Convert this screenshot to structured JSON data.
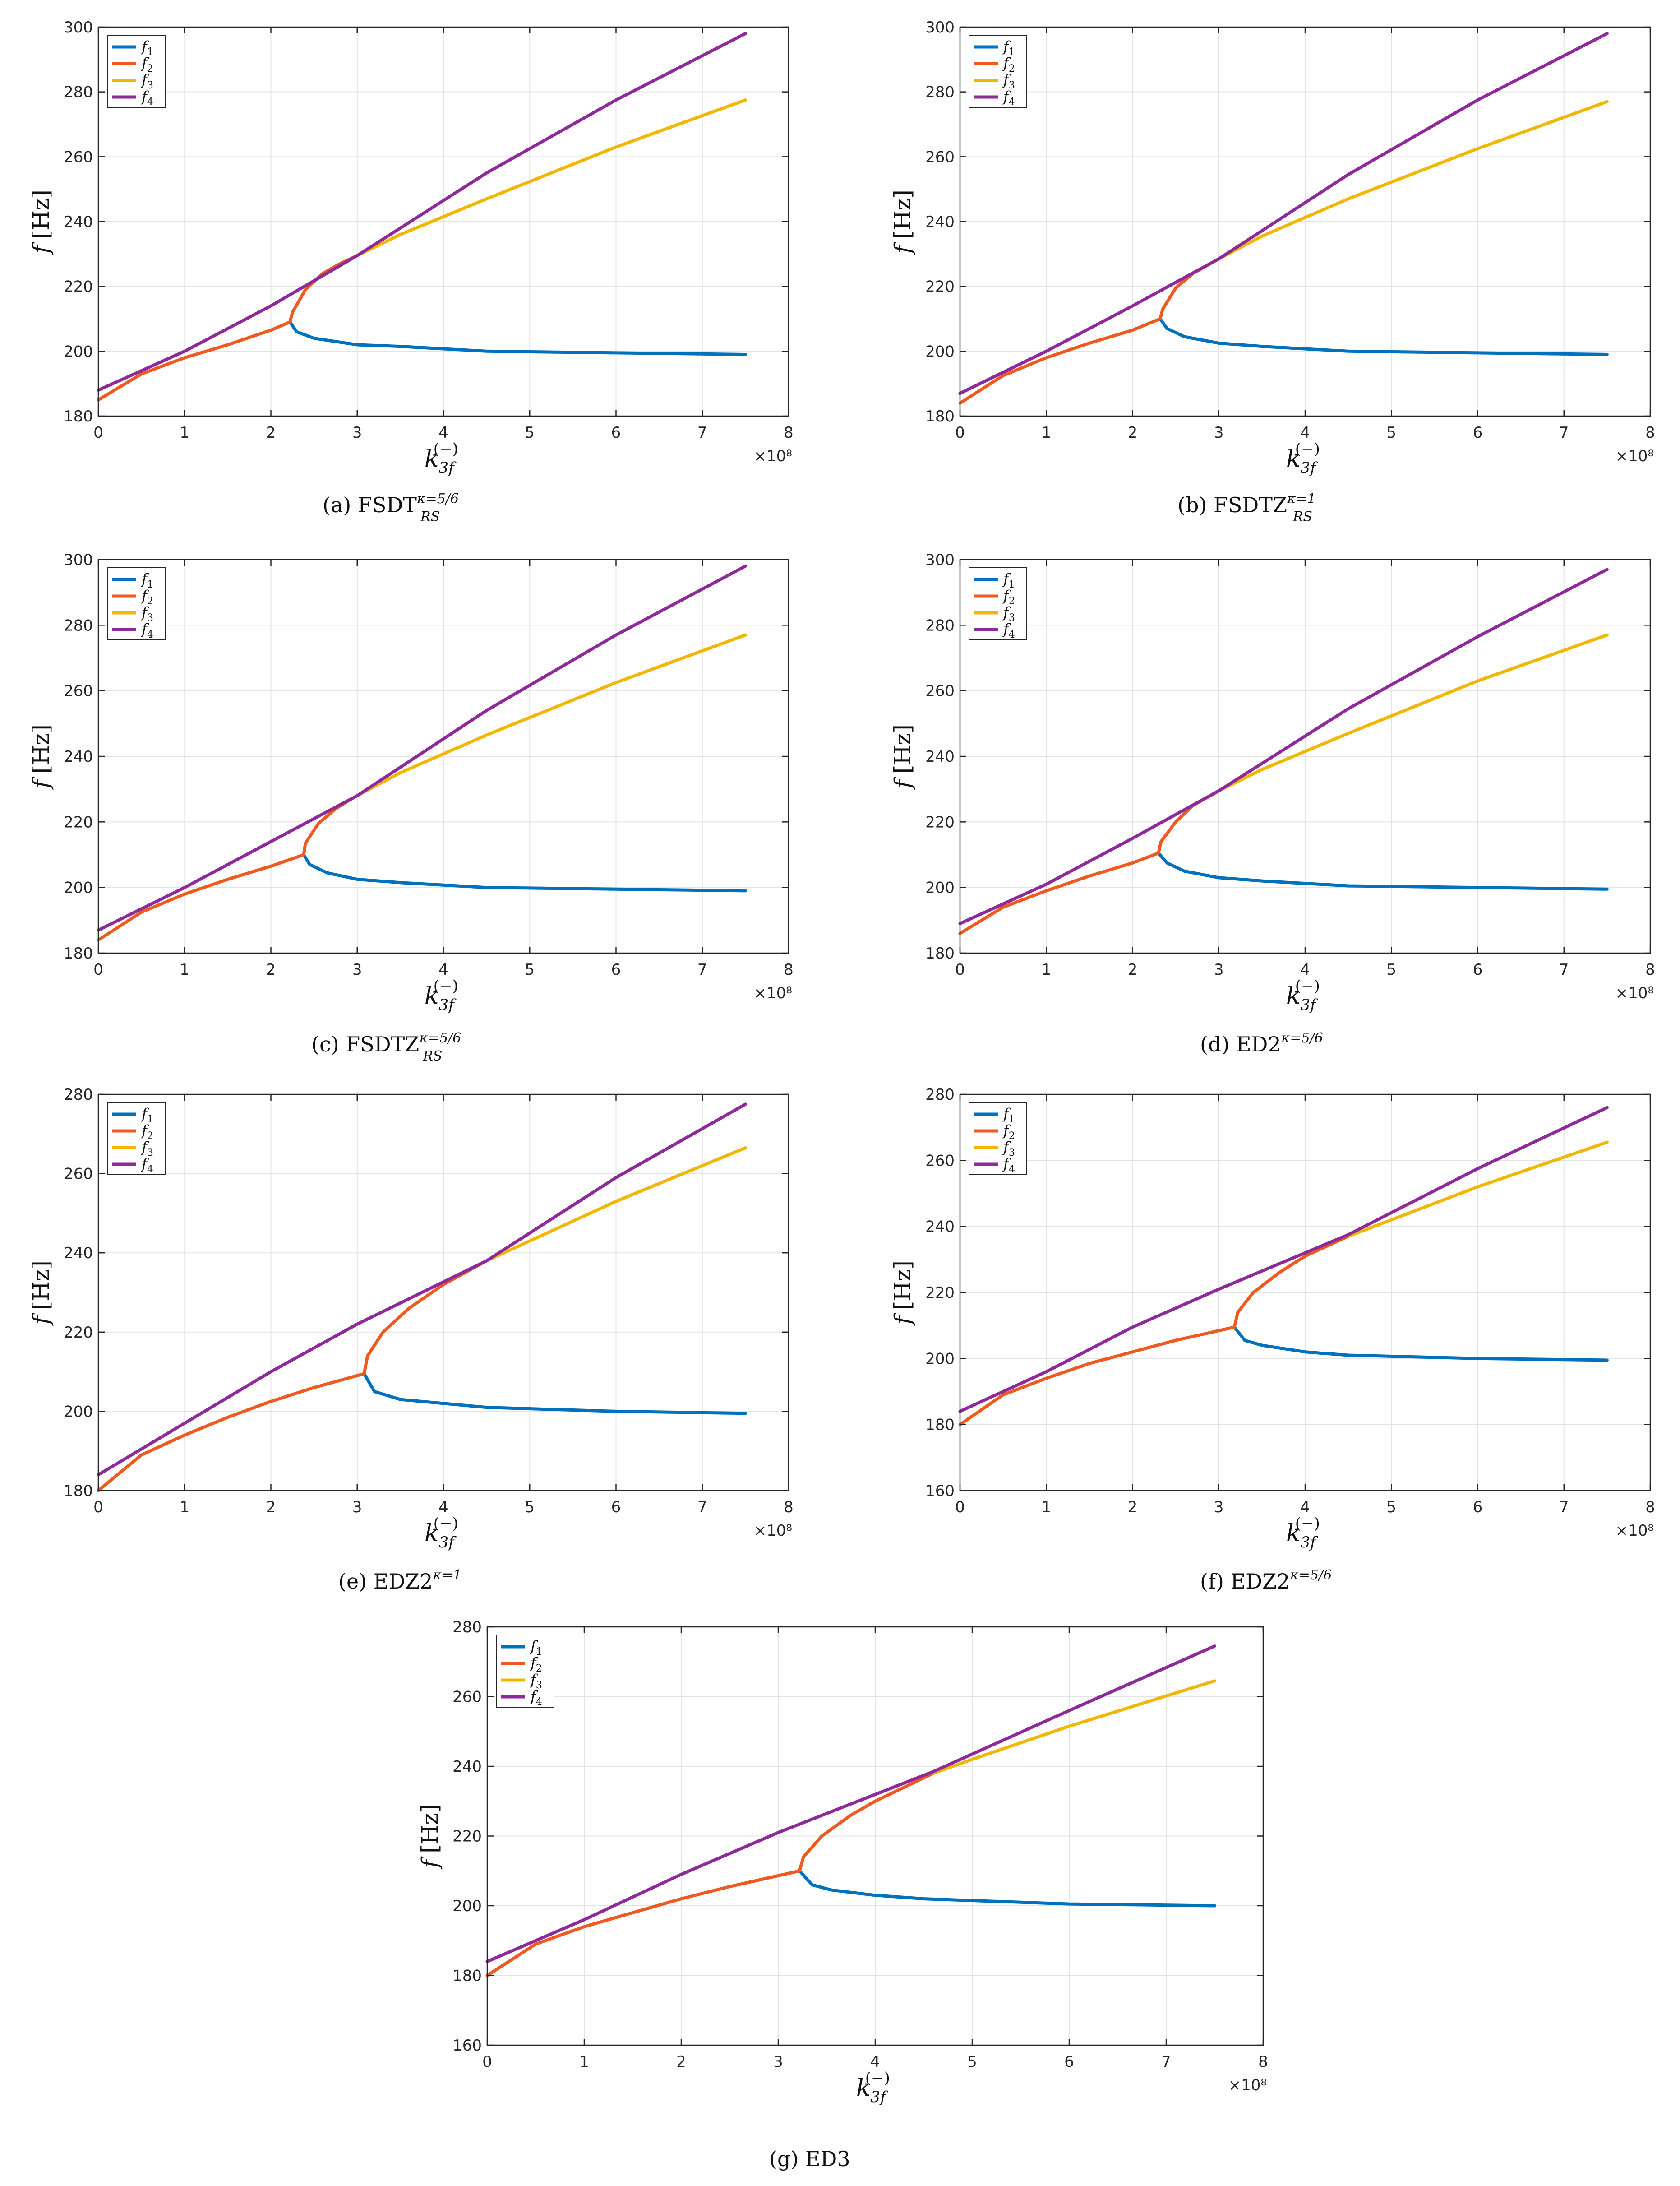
{
  "figure": {
    "panels": [
      {
        "id": "a",
        "caption_label": "(a)",
        "caption_main": "FSDT",
        "caption_sub": "RS",
        "caption_sup": "κ=5/6"
      },
      {
        "id": "b",
        "caption_label": "(b)",
        "caption_main": "FSDTZ",
        "caption_sub": "RS",
        "caption_sup": "κ=1"
      },
      {
        "id": "c",
        "caption_label": "(c)",
        "caption_main": "FSDTZ",
        "caption_sub": "RS",
        "caption_sup": "κ=5/6"
      },
      {
        "id": "d",
        "caption_label": "(d)",
        "caption_main": "ED2",
        "caption_sub": "",
        "caption_sup": "κ=5/6"
      },
      {
        "id": "e",
        "caption_label": "(e)",
        "caption_main": "EDZ2",
        "caption_sub": "",
        "caption_sup": "κ=1"
      },
      {
        "id": "f",
        "caption_label": "(f)",
        "caption_main": "EDZ2",
        "caption_sub": "",
        "caption_sup": "κ=5/6"
      },
      {
        "id": "g",
        "caption_label": "(g)",
        "caption_main": "ED3",
        "caption_sub": "",
        "caption_sup": ""
      }
    ]
  },
  "colors": {
    "f1": "#0072BD",
    "f2": "#EF5A20",
    "f3": "#F2B705",
    "f4": "#8E2A9A",
    "grid": "#e3e3e3",
    "axis": "#262626"
  },
  "chart_data": [
    {
      "panel": "a",
      "type": "line",
      "xlabel": "k_3f^(−)",
      "ylabel": "f [Hz]",
      "x_exponent": "×10⁸",
      "xlim": [
        0,
        8
      ],
      "ylim": [
        180,
        300
      ],
      "xticks": [
        "0",
        "1",
        "2",
        "3",
        "4",
        "5",
        "6",
        "7",
        "8"
      ],
      "yticks": [
        "180",
        "200",
        "220",
        "240",
        "260",
        "280",
        "300"
      ],
      "legend": [
        "f1",
        "f2",
        "f3",
        "f4"
      ],
      "legend_position": "top-left",
      "grid": true,
      "series": [
        {
          "name": "f1",
          "x": [
            2.22,
            2.3,
            2.5,
            3.0,
            3.5,
            4.5,
            6.0,
            7.5
          ],
          "y": [
            209,
            206,
            204,
            202,
            201.5,
            200,
            199.5,
            199
          ]
        },
        {
          "name": "f2",
          "x": [
            0.0,
            0.5,
            1.0,
            1.5,
            2.0,
            2.22,
            2.25,
            2.4,
            2.6,
            2.8,
            3.0
          ],
          "y": [
            185,
            193,
            198,
            202,
            206.5,
            209,
            212,
            219,
            224,
            227,
            229.5
          ]
        },
        {
          "name": "f3",
          "x": [
            3.0,
            3.5,
            4.5,
            6.0,
            7.5
          ],
          "y": [
            229.5,
            236,
            247,
            263,
            277.5
          ]
        },
        {
          "name": "f4",
          "x": [
            0.0,
            1.0,
            2.0,
            3.0,
            4.5,
            6.0,
            7.5
          ],
          "y": [
            188,
            200,
            214,
            229.5,
            255,
            277.5,
            298
          ]
        }
      ]
    },
    {
      "panel": "b",
      "type": "line",
      "xlabel": "k_3f^(−)",
      "ylabel": "f [Hz]",
      "x_exponent": "×10⁸",
      "xlim": [
        0,
        8
      ],
      "ylim": [
        180,
        300
      ],
      "xticks": [
        "0",
        "1",
        "2",
        "3",
        "4",
        "5",
        "6",
        "7",
        "8"
      ],
      "yticks": [
        "180",
        "200",
        "220",
        "240",
        "260",
        "280",
        "300"
      ],
      "legend": [
        "f1",
        "f2",
        "f3",
        "f4"
      ],
      "legend_position": "top-left",
      "grid": true,
      "series": [
        {
          "name": "f1",
          "x": [
            2.32,
            2.4,
            2.6,
            3.0,
            3.5,
            4.5,
            6.0,
            7.5
          ],
          "y": [
            210,
            207,
            204.5,
            202.5,
            201.5,
            200,
            199.5,
            199
          ]
        },
        {
          "name": "f2",
          "x": [
            0.0,
            0.5,
            1.0,
            1.5,
            2.0,
            2.32,
            2.35,
            2.5,
            2.7,
            2.9,
            3.0
          ],
          "y": [
            184,
            192.5,
            198,
            202.5,
            206.5,
            210,
            213,
            219.5,
            224,
            227,
            228.5
          ]
        },
        {
          "name": "f3",
          "x": [
            3.0,
            3.5,
            4.5,
            6.0,
            7.5
          ],
          "y": [
            228.5,
            235.5,
            247,
            262.5,
            277
          ]
        },
        {
          "name": "f4",
          "x": [
            0.0,
            1.0,
            2.0,
            3.0,
            4.5,
            6.0,
            7.5
          ],
          "y": [
            187,
            200,
            214,
            228.5,
            254.5,
            277.5,
            298
          ]
        }
      ]
    },
    {
      "panel": "c",
      "type": "line",
      "xlabel": "k_3f^(−)",
      "ylabel": "f [Hz]",
      "x_exponent": "×10⁸",
      "xlim": [
        0,
        8
      ],
      "ylim": [
        180,
        300
      ],
      "xticks": [
        "0",
        "1",
        "2",
        "3",
        "4",
        "5",
        "6",
        "7",
        "8"
      ],
      "yticks": [
        "180",
        "200",
        "220",
        "240",
        "260",
        "280",
        "300"
      ],
      "legend": [
        "f1",
        "f2",
        "f3",
        "f4"
      ],
      "legend_position": "top-left",
      "grid": true,
      "series": [
        {
          "name": "f1",
          "x": [
            2.38,
            2.45,
            2.65,
            3.0,
            3.5,
            4.5,
            6.0,
            7.5
          ],
          "y": [
            210,
            207,
            204.5,
            202.5,
            201.5,
            200,
            199.5,
            199
          ]
        },
        {
          "name": "f2",
          "x": [
            0.0,
            0.5,
            1.0,
            1.5,
            2.0,
            2.38,
            2.4,
            2.55,
            2.75,
            2.9,
            3.0
          ],
          "y": [
            184,
            192.5,
            198,
            202.5,
            206.5,
            210,
            213.5,
            219.5,
            224,
            226.5,
            228
          ]
        },
        {
          "name": "f3",
          "x": [
            3.0,
            3.5,
            4.5,
            6.0,
            7.5
          ],
          "y": [
            228,
            235,
            246.5,
            262.5,
            277
          ]
        },
        {
          "name": "f4",
          "x": [
            0.0,
            1.0,
            2.0,
            3.0,
            4.5,
            6.0,
            7.5
          ],
          "y": [
            187,
            200,
            214,
            228,
            254,
            277,
            298
          ]
        }
      ]
    },
    {
      "panel": "d",
      "type": "line",
      "xlabel": "k_3f^(−)",
      "ylabel": "f [Hz]",
      "x_exponent": "×10⁸",
      "xlim": [
        0,
        8
      ],
      "ylim": [
        180,
        300
      ],
      "xticks": [
        "0",
        "1",
        "2",
        "3",
        "4",
        "5",
        "6",
        "7",
        "8"
      ],
      "yticks": [
        "180",
        "200",
        "220",
        "240",
        "260",
        "280",
        "300"
      ],
      "legend": [
        "f1",
        "f2",
        "f3",
        "f4"
      ],
      "legend_position": "top-left",
      "grid": true,
      "series": [
        {
          "name": "f1",
          "x": [
            2.3,
            2.4,
            2.6,
            3.0,
            3.5,
            4.5,
            6.0,
            7.5
          ],
          "y": [
            210.5,
            207.5,
            205,
            203,
            202,
            200.5,
            200,
            199.5
          ]
        },
        {
          "name": "f2",
          "x": [
            0.0,
            0.5,
            1.0,
            1.5,
            2.0,
            2.3,
            2.33,
            2.5,
            2.7,
            2.9,
            3.0
          ],
          "y": [
            186,
            194,
            199,
            203.5,
            207.5,
            210.5,
            214,
            220,
            225,
            228,
            229.5
          ]
        },
        {
          "name": "f3",
          "x": [
            3.0,
            3.5,
            4.5,
            6.0,
            7.5
          ],
          "y": [
            229.5,
            236,
            247,
            263,
            277
          ]
        },
        {
          "name": "f4",
          "x": [
            0.0,
            1.0,
            2.0,
            3.0,
            4.5,
            6.0,
            7.5
          ],
          "y": [
            189,
            201,
            215,
            229.5,
            254.5,
            276.5,
            297
          ]
        }
      ]
    },
    {
      "panel": "e",
      "type": "line",
      "xlabel": "k_3f^(−)",
      "ylabel": "f [Hz]",
      "x_exponent": "×10⁸",
      "xlim": [
        0,
        8
      ],
      "ylim": [
        180,
        280
      ],
      "xticks": [
        "0",
        "1",
        "2",
        "3",
        "4",
        "5",
        "6",
        "7",
        "8"
      ],
      "yticks": [
        "180",
        "200",
        "220",
        "240",
        "260",
        "280"
      ],
      "legend": [
        "f1",
        "f2",
        "f3",
        "f4"
      ],
      "legend_position": "top-left",
      "grid": true,
      "series": [
        {
          "name": "f1",
          "x": [
            3.08,
            3.2,
            3.5,
            4.0,
            4.5,
            6.0,
            7.5
          ],
          "y": [
            209.5,
            205,
            203,
            202,
            201,
            200,
            199.5
          ]
        },
        {
          "name": "f2",
          "x": [
            0.0,
            0.5,
            1.0,
            1.5,
            2.0,
            2.5,
            3.08,
            3.12,
            3.3,
            3.6,
            4.0,
            4.5
          ],
          "y": [
            180,
            189,
            194,
            198.5,
            202.5,
            206,
            209.5,
            214,
            220,
            226,
            232,
            238
          ]
        },
        {
          "name": "f3",
          "x": [
            4.5,
            5.0,
            6.0,
            7.5
          ],
          "y": [
            238,
            243,
            253,
            266.5
          ]
        },
        {
          "name": "f4",
          "x": [
            0.0,
            1.0,
            2.0,
            3.0,
            4.5,
            6.0,
            7.5
          ],
          "y": [
            184,
            197,
            210,
            222,
            238,
            259,
            277.5
          ]
        }
      ]
    },
    {
      "panel": "f",
      "type": "line",
      "xlabel": "k_3f^(−)",
      "ylabel": "f [Hz]",
      "x_exponent": "×10⁸",
      "xlim": [
        0,
        8
      ],
      "ylim": [
        160,
        280
      ],
      "xticks": [
        "0",
        "1",
        "2",
        "3",
        "4",
        "5",
        "6",
        "7",
        "8"
      ],
      "yticks": [
        "160",
        "180",
        "200",
        "220",
        "240",
        "260",
        "280"
      ],
      "legend": [
        "f1",
        "f2",
        "f3",
        "f4"
      ],
      "legend_position": "top-left",
      "grid": true,
      "series": [
        {
          "name": "f1",
          "x": [
            3.18,
            3.3,
            3.5,
            4.0,
            4.5,
            6.0,
            7.5
          ],
          "y": [
            209.5,
            205.5,
            204,
            202,
            201,
            200,
            199.5
          ]
        },
        {
          "name": "f2",
          "x": [
            0.0,
            0.5,
            1.0,
            1.5,
            2.0,
            2.5,
            3.18,
            3.22,
            3.4,
            3.7,
            4.0,
            4.5
          ],
          "y": [
            180,
            189,
            194,
            198.5,
            202,
            205.5,
            209.5,
            214,
            220,
            226,
            231,
            237
          ]
        },
        {
          "name": "f3",
          "x": [
            4.5,
            5.0,
            6.0,
            7.5
          ],
          "y": [
            237,
            242,
            252,
            265.5
          ]
        },
        {
          "name": "f4",
          "x": [
            0.0,
            1.0,
            2.0,
            3.0,
            4.5,
            6.0,
            7.5
          ],
          "y": [
            184,
            196,
            209.5,
            221,
            237.5,
            257.5,
            276
          ]
        }
      ]
    },
    {
      "panel": "g",
      "type": "line",
      "xlabel": "k_3f^(−)",
      "ylabel": "f [Hz]",
      "x_exponent": "×10⁸",
      "xlim": [
        0,
        8
      ],
      "ylim": [
        160,
        280
      ],
      "xticks": [
        "0",
        "1",
        "2",
        "3",
        "4",
        "5",
        "6",
        "7",
        "8"
      ],
      "yticks": [
        "160",
        "180",
        "200",
        "220",
        "240",
        "260",
        "280"
      ],
      "legend": [
        "f1",
        "f2",
        "f3",
        "f4"
      ],
      "legend_position": "top-left",
      "grid": true,
      "series": [
        {
          "name": "f1",
          "x": [
            3.22,
            3.35,
            3.55,
            4.0,
            4.5,
            6.0,
            7.5
          ],
          "y": [
            210,
            206,
            204.5,
            203,
            202,
            200.5,
            200
          ]
        },
        {
          "name": "f2",
          "x": [
            0.0,
            0.5,
            1.0,
            1.5,
            2.0,
            2.5,
            3.22,
            3.26,
            3.45,
            3.75,
            4.0,
            4.6
          ],
          "y": [
            180,
            189,
            194,
            198,
            202,
            205.5,
            210,
            214,
            220,
            226,
            230,
            238
          ]
        },
        {
          "name": "f3",
          "x": [
            4.6,
            5.0,
            6.0,
            7.5
          ],
          "y": [
            238,
            242,
            251.5,
            264.5
          ]
        },
        {
          "name": "f4",
          "x": [
            0.0,
            1.0,
            2.0,
            3.0,
            4.6,
            6.0,
            7.5
          ],
          "y": [
            184,
            196,
            209,
            221,
            238.5,
            256,
            274.5
          ]
        }
      ]
    }
  ]
}
